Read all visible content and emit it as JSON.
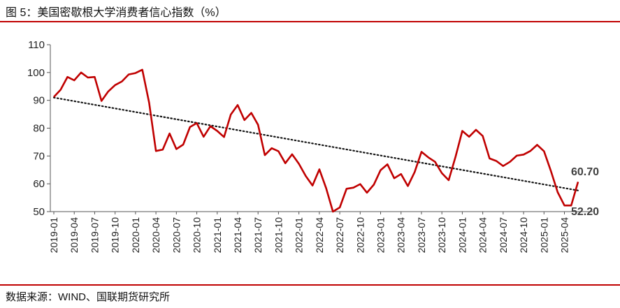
{
  "header": {
    "title": "图 5：美国密歇根大学消费者信心指数（%）"
  },
  "footer": {
    "source": "数据来源：WIND、国联期货研究所"
  },
  "colors": {
    "accent": "#c00000",
    "series": "#c00000",
    "trend": "#111111"
  },
  "chart_data": {
    "type": "line",
    "title": "图 5：美国密歇根大学消费者信心指数（%）",
    "xlabel": "",
    "ylabel": "",
    "ylim": [
      50,
      110
    ],
    "yticks": [
      50,
      60,
      70,
      80,
      90,
      100,
      110
    ],
    "grid": false,
    "legend": "none",
    "x_tick_labels": [
      "2019-01",
      "2019-04",
      "2019-07",
      "2019-10",
      "2020-01",
      "2020-04",
      "2020-07",
      "2020-10",
      "2021-01",
      "2021-04",
      "2021-07",
      "2021-10",
      "2022-01",
      "2022-04",
      "2022-07",
      "2022-10",
      "2023-01",
      "2023-04",
      "2023-07",
      "2023-10",
      "2024-01",
      "2024-04",
      "2024-07",
      "2024-10",
      "2025-01",
      "2025-04"
    ],
    "x": [
      "2019-01",
      "2019-02",
      "2019-03",
      "2019-04",
      "2019-05",
      "2019-06",
      "2019-07",
      "2019-08",
      "2019-09",
      "2019-10",
      "2019-11",
      "2019-12",
      "2020-01",
      "2020-02",
      "2020-03",
      "2020-04",
      "2020-05",
      "2020-06",
      "2020-07",
      "2020-08",
      "2020-09",
      "2020-10",
      "2020-11",
      "2020-12",
      "2021-01",
      "2021-02",
      "2021-03",
      "2021-04",
      "2021-05",
      "2021-06",
      "2021-07",
      "2021-08",
      "2021-09",
      "2021-10",
      "2021-11",
      "2021-12",
      "2022-01",
      "2022-02",
      "2022-03",
      "2022-04",
      "2022-05",
      "2022-06",
      "2022-07",
      "2022-08",
      "2022-09",
      "2022-10",
      "2022-11",
      "2022-12",
      "2023-01",
      "2023-02",
      "2023-03",
      "2023-04",
      "2023-05",
      "2023-06",
      "2023-07",
      "2023-08",
      "2023-09",
      "2023-10",
      "2023-11",
      "2023-12",
      "2024-01",
      "2024-02",
      "2024-03",
      "2024-04",
      "2024-05",
      "2024-06",
      "2024-07",
      "2024-08",
      "2024-09",
      "2024-10",
      "2024-11",
      "2024-12",
      "2025-01",
      "2025-02",
      "2025-03",
      "2025-04",
      "2025-05",
      "2025-06"
    ],
    "series": [
      {
        "values": [
          91.2,
          93.8,
          98.4,
          97.2,
          100.0,
          98.2,
          98.4,
          89.8,
          93.2,
          95.5,
          96.8,
          99.3,
          99.8,
          101.0,
          89.1,
          71.8,
          72.3,
          78.1,
          72.5,
          74.1,
          80.4,
          81.8,
          76.9,
          80.7,
          79.0,
          76.8,
          84.9,
          88.3,
          82.9,
          85.5,
          81.2,
          70.3,
          72.8,
          71.7,
          67.4,
          70.6,
          67.2,
          62.8,
          59.4,
          65.2,
          58.4,
          50.0,
          51.5,
          58.2,
          58.6,
          59.9,
          56.8,
          59.7,
          64.9,
          67.0,
          62.0,
          63.5,
          59.2,
          64.2,
          71.5,
          69.5,
          67.9,
          63.8,
          61.3,
          69.7,
          79.0,
          76.9,
          79.4,
          77.2,
          69.1,
          68.2,
          66.4,
          67.9,
          70.1,
          70.5,
          71.8,
          74.0,
          71.7,
          64.7,
          57.0,
          52.2,
          52.2,
          60.7
        ]
      },
      {
        "type": "trend",
        "values_start_end": [
          91.0,
          57.6
        ]
      }
    ],
    "annotations": [
      {
        "text": "60.70",
        "at": "2025-06"
      },
      {
        "text": "52.20",
        "at": "2025-05"
      }
    ]
  }
}
